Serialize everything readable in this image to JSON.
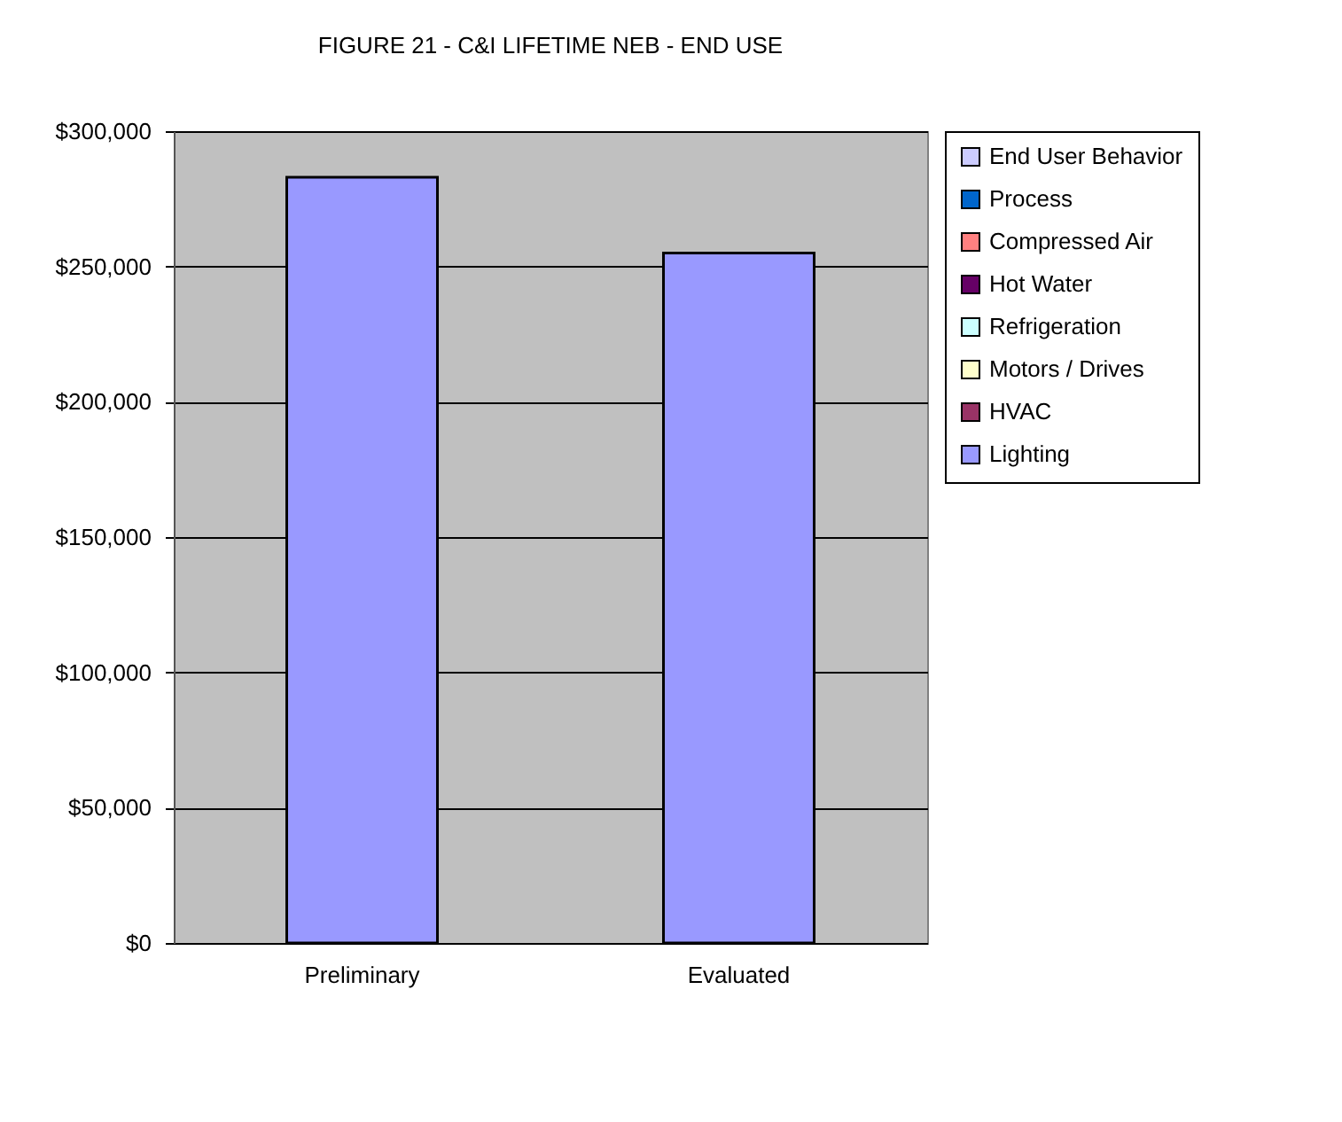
{
  "chart_data": {
    "type": "bar",
    "title": "FIGURE 21 - C&I LIFETIME NEB - END USE",
    "categories": [
      "Preliminary",
      "Evaluated"
    ],
    "series": [
      {
        "name": "Lighting",
        "color": "#9999ff",
        "values": [
          283000,
          255000
        ]
      },
      {
        "name": "HVAC",
        "color": "#993366",
        "values": [
          null,
          null
        ]
      },
      {
        "name": "Motors / Drives",
        "color": "#ffffcc",
        "values": [
          null,
          null
        ]
      },
      {
        "name": "Refrigeration",
        "color": "#ccffff",
        "values": [
          null,
          null
        ]
      },
      {
        "name": "Hot Water",
        "color": "#660066",
        "values": [
          null,
          null
        ]
      },
      {
        "name": "Compressed Air",
        "color": "#ff8080",
        "values": [
          null,
          null
        ]
      },
      {
        "name": "Process",
        "color": "#0066cc",
        "values": [
          null,
          null
        ]
      },
      {
        "name": "End User Behavior",
        "color": "#ccccff",
        "values": [
          null,
          null
        ]
      }
    ],
    "ylim": [
      0,
      300000
    ],
    "yticks": [
      {
        "value": 0,
        "label": "$0"
      },
      {
        "value": 50000,
        "label": "$50,000"
      },
      {
        "value": 100000,
        "label": "$100,000"
      },
      {
        "value": 150000,
        "label": "$150,000"
      },
      {
        "value": 200000,
        "label": "$200,000"
      },
      {
        "value": 250000,
        "label": "$250,000"
      },
      {
        "value": 300000,
        "label": "$300,000"
      }
    ],
    "grid": "y",
    "legend": "right"
  }
}
